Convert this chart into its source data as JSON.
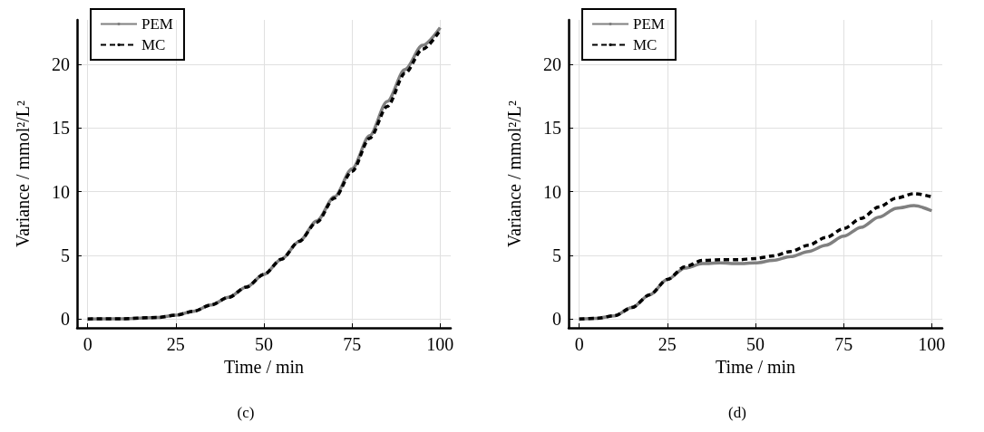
{
  "chart_data": [
    {
      "type": "line",
      "title": "(c)",
      "xlabel": "Time / min",
      "ylabel": "Variance / mmol²/L²",
      "xlim": [
        -3,
        103
      ],
      "ylim": [
        -0.7,
        23.5
      ],
      "xticks": [
        0,
        25,
        50,
        75,
        100
      ],
      "yticks": [
        0,
        5,
        10,
        15,
        20
      ],
      "grid": true,
      "legend": "top left",
      "marker": "none",
      "x": [
        0,
        10,
        20,
        25,
        30,
        35,
        40,
        45,
        50,
        55,
        60,
        65,
        70,
        75,
        80,
        85,
        90,
        95,
        100
      ],
      "series": [
        {
          "name": "PEM",
          "color": "#808080",
          "line_style": "solid",
          "values": [
            0,
            0.02,
            0.12,
            0.3,
            0.6,
            1.1,
            1.7,
            2.5,
            3.5,
            4.7,
            6.1,
            7.7,
            9.6,
            11.8,
            14.4,
            17.1,
            19.6,
            21.5,
            22.9
          ]
        },
        {
          "name": "MC",
          "color": "#000000",
          "line_style": "dashed",
          "values": [
            0,
            0.02,
            0.12,
            0.3,
            0.6,
            1.1,
            1.7,
            2.5,
            3.5,
            4.7,
            6.1,
            7.6,
            9.5,
            11.6,
            14.2,
            16.7,
            19.3,
            21.2,
            22.7
          ]
        }
      ]
    },
    {
      "type": "line",
      "title": "(d)",
      "xlabel": "Time / min",
      "ylabel": "Variance / mmol²/L²",
      "xlim": [
        -3,
        103
      ],
      "ylim": [
        -0.7,
        23.5
      ],
      "xticks": [
        0,
        25,
        50,
        75,
        100
      ],
      "yticks": [
        0,
        5,
        10,
        15,
        20
      ],
      "grid": true,
      "legend": "top left",
      "marker": "none",
      "x": [
        0,
        5,
        10,
        15,
        20,
        25,
        30,
        35,
        40,
        45,
        50,
        55,
        60,
        65,
        70,
        75,
        80,
        85,
        90,
        95,
        100
      ],
      "series": [
        {
          "name": "PEM",
          "color": "#808080",
          "line_style": "solid",
          "values": [
            0,
            0.05,
            0.25,
            0.9,
            1.9,
            3.1,
            4.0,
            4.35,
            4.4,
            4.35,
            4.4,
            4.6,
            4.9,
            5.3,
            5.8,
            6.5,
            7.2,
            8.0,
            8.7,
            8.9,
            8.5
          ]
        },
        {
          "name": "MC",
          "color": "#000000",
          "line_style": "dashed",
          "values": [
            0,
            0.05,
            0.25,
            0.9,
            1.9,
            3.1,
            4.1,
            4.6,
            4.65,
            4.65,
            4.75,
            4.95,
            5.3,
            5.8,
            6.4,
            7.1,
            7.9,
            8.8,
            9.5,
            9.85,
            9.6
          ]
        }
      ]
    }
  ]
}
